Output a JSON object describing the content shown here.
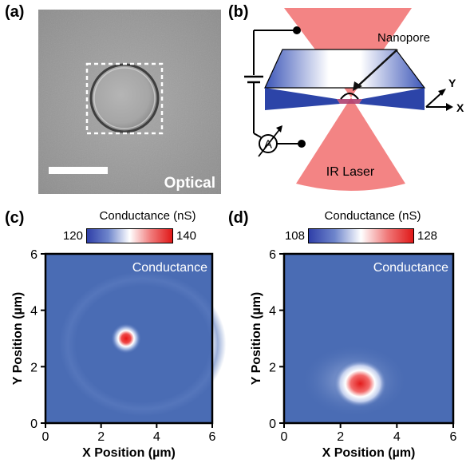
{
  "panels": {
    "a": {
      "label": "(a)",
      "overlay_text": "Optical"
    },
    "b": {
      "label": "(b)",
      "nanopore_label": "Nanopore",
      "laser_label": "IR Laser",
      "ammeter_symbol": "A",
      "axis_y": "Y",
      "axis_x": "X"
    },
    "c": {
      "label": "(c)",
      "colorbar_title": "Conductance (nS)",
      "colorbar_min": "120",
      "colorbar_max": "140",
      "map_label": "Conductance"
    },
    "d": {
      "label": "(d)",
      "colorbar_title": "Conductance (nS)",
      "colorbar_min": "108",
      "colorbar_max": "128",
      "map_label": "Conductance"
    }
  },
  "colors": {
    "map_background": "#4a6cb4",
    "colorbar_low": "#2f3fa8",
    "colorbar_mid": "#ffffff",
    "colorbar_high": "#e01818",
    "laser": "#ef5b5b",
    "membrane": "#2c44a8"
  },
  "chart_data": [
    {
      "type": "heatmap",
      "panel": "c",
      "title": "Conductance",
      "xlabel": "X Position (µm)",
      "ylabel": "Y Position (µm)",
      "xlim": [
        0,
        6
      ],
      "ylim": [
        0,
        6
      ],
      "xticks": [
        "0",
        "2",
        "4",
        "6"
      ],
      "yticks": [
        "0",
        "2",
        "4",
        "6"
      ],
      "colorbar_range": [
        120,
        140
      ],
      "hotspot": {
        "x": 2.9,
        "y": 3.0,
        "peak": 140,
        "background": 122
      }
    },
    {
      "type": "heatmap",
      "panel": "d",
      "title": "Conductance",
      "xlabel": "X Position (µm)",
      "ylabel": "Y Position (µm)",
      "xlim": [
        0,
        6
      ],
      "ylim": [
        0,
        6
      ],
      "xticks": [
        "0",
        "2",
        "4",
        "6"
      ],
      "yticks": [
        "0",
        "2",
        "4",
        "6"
      ],
      "colorbar_range": [
        108,
        128
      ],
      "hotspot": {
        "x": 2.7,
        "y": 1.4,
        "peak": 128,
        "background": 110
      }
    }
  ]
}
